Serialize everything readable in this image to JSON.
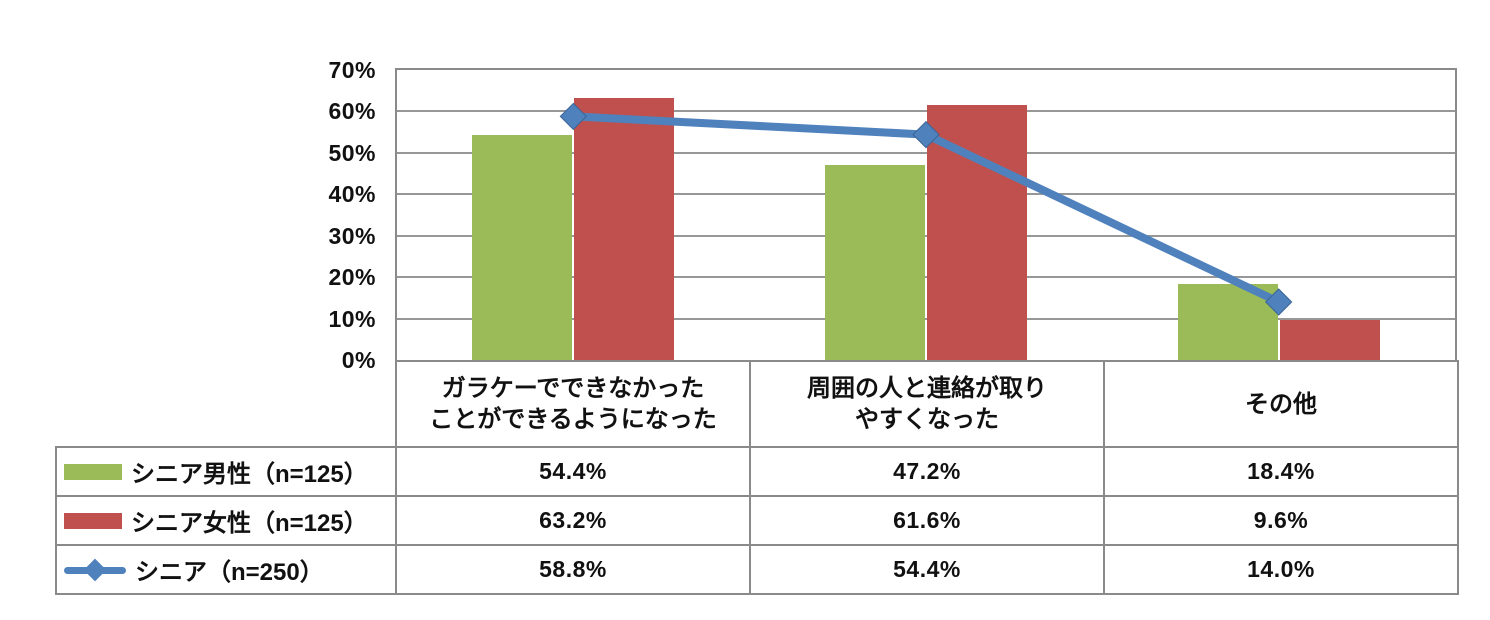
{
  "chart_data": {
    "type": "bar",
    "subtype": "grouped-bars-with-line-overlay",
    "title": "",
    "categories": [
      {
        "lines": [
          "ガラケーでできなかった",
          "ことができるようになった"
        ]
      },
      {
        "lines": [
          "周囲の人と連絡が取り",
          "やすくなった"
        ]
      },
      {
        "lines": [
          "その他"
        ]
      }
    ],
    "series": [
      {
        "name": "シニア男性（n=125）",
        "kind": "bar",
        "color": "#9BBB59",
        "values": [
          54.4,
          47.2,
          18.4
        ],
        "value_labels": [
          "54.4%",
          "47.2%",
          "18.4%"
        ]
      },
      {
        "name": "シニア女性（n=125）",
        "kind": "bar",
        "color": "#C0504D",
        "values": [
          63.2,
          61.6,
          9.6
        ],
        "value_labels": [
          "63.2%",
          "61.6%",
          "9.6%"
        ]
      },
      {
        "name": "シニア（n=250）",
        "kind": "line",
        "color": "#4F81BD",
        "marker": "diamond",
        "marker_stroke": "#3A6598",
        "values": [
          58.8,
          54.4,
          14.0
        ],
        "value_labels": [
          "58.8%",
          "54.4%",
          "14.0%"
        ]
      }
    ],
    "y_axis": {
      "min": 0,
      "max": 70,
      "step": 10,
      "tick_labels": [
        "0%",
        "10%",
        "20%",
        "30%",
        "40%",
        "50%",
        "60%",
        "70%"
      ]
    },
    "ylim": [
      0,
      70
    ],
    "grid": true,
    "legend_position": "table-left"
  },
  "colors": {
    "background": "#ffffff",
    "grid": "#979797",
    "border": "#8a8a8a",
    "text": "#111111"
  }
}
